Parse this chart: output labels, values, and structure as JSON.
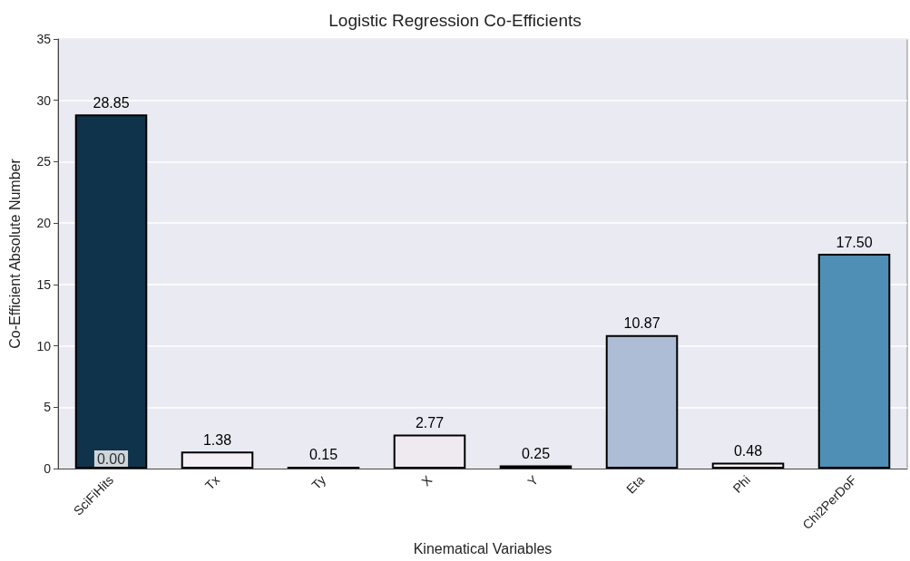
{
  "chart_data": {
    "type": "bar",
    "title": "Logistic Regression Co-Efficients",
    "xlabel": "Kinematical Variables",
    "ylabel": "Co-Efficient Absolute Number",
    "categories": [
      "SciFiHits",
      "Tx",
      "Ty",
      "X",
      "Y",
      "Eta",
      "Phi",
      "Chi2PerDoF"
    ],
    "values": [
      28.85,
      1.38,
      0.15,
      2.77,
      0.25,
      10.87,
      0.48,
      17.5
    ],
    "value_labels": [
      "28.85",
      "1.38",
      "0.15",
      "2.77",
      "0.25",
      "10.87",
      "0.48",
      "17.50"
    ],
    "colors": [
      "#0f334a",
      "#f4eef5",
      "#2a2a40",
      "#efeaf0",
      "#d8d4e0",
      "#adbdd6",
      "#f5f0f5",
      "#4f8fb5"
    ],
    "annotations": [
      {
        "text": "0.00",
        "x": "SciFiHits",
        "y": 0
      }
    ],
    "ylim": [
      0,
      35
    ],
    "yticks": [
      0,
      5,
      10,
      15,
      20,
      25,
      30,
      35
    ],
    "grid": "y"
  }
}
